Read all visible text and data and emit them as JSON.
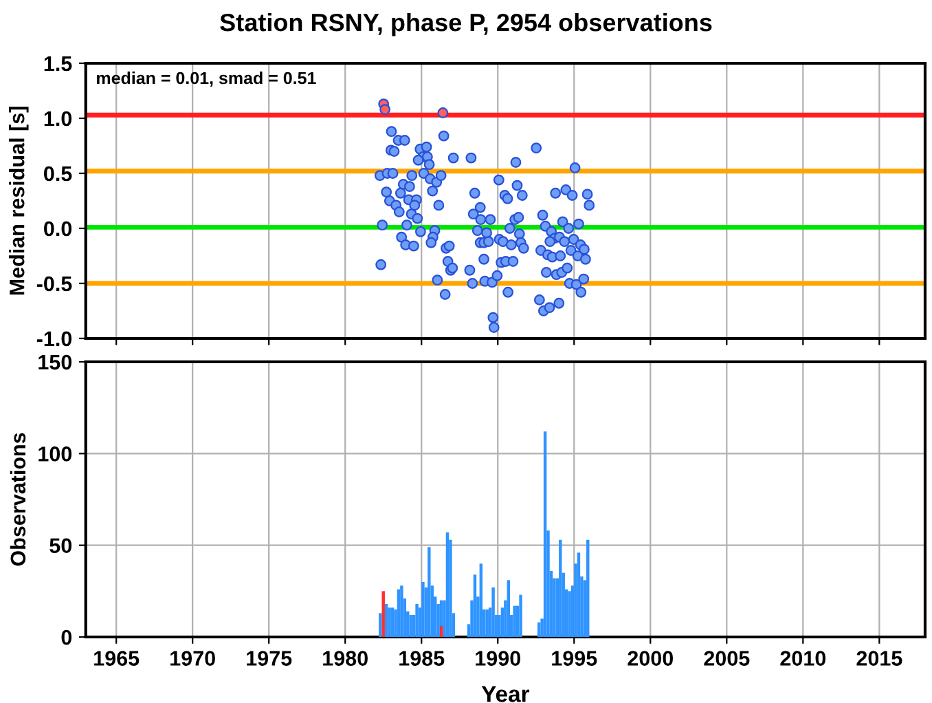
{
  "chart_data": [
    {
      "type": "scatter",
      "title": "Station RSNY, phase P, 2954 observations",
      "ylabel": "Median residual [s]",
      "annotations": [
        "median = 0.01, smad = 0.51"
      ],
      "xlim": [
        1963,
        2018
      ],
      "xticks": [
        1965,
        1970,
        1975,
        1980,
        1985,
        1990,
        1995,
        2000,
        2005,
        2010,
        2015
      ],
      "ylim": [
        -1.0,
        1.5
      ],
      "yticks": [
        {
          "value": -1.0,
          "label": "-1.0"
        },
        {
          "value": -0.5,
          "label": "-0.5"
        },
        {
          "value": 0.0,
          "label": "0.0"
        },
        {
          "value": 0.5,
          "label": "0.5"
        },
        {
          "value": 1.0,
          "label": "1.0"
        },
        {
          "value": 1.5,
          "label": "1.5"
        }
      ],
      "grid": "x",
      "tick_labels": "y",
      "marker": "circle",
      "ref_lines": [
        {
          "axis": "y",
          "value": 1.03,
          "color": "#ff2020"
        },
        {
          "axis": "y",
          "value": 0.52,
          "color": "#ffa500"
        },
        {
          "axis": "y",
          "value": 0.01,
          "color": "#00e600"
        },
        {
          "axis": "y",
          "value": -0.5,
          "color": "#ffa500"
        }
      ],
      "series": [
        {
          "color": "#6e9ef5",
          "x": [
            1983.03,
            1983.48,
            1983.9,
            1983.0,
            1983.21,
            1984.91,
            1985.33,
            1986.46,
            1985.09,
            1985.39,
            1984.79,
            1985.51,
            1987.09,
            1988.25,
            1992.52,
            1991.18,
            1995.06,
            1982.28,
            1982.76,
            1983.12,
            1984.37,
            1985.15,
            1985.57,
            1985.99,
            1986.28,
            1990.07,
            1982.7,
            1983.81,
            1984.22,
            1983.63,
            1982.91,
            1983.33,
            1984.16,
            1984.67,
            1984.55,
            1983.54,
            1985.72,
            1986.13,
            1988.49,
            1990.46,
            1990.64,
            1991.27,
            1991.6,
            1993.78,
            1994.46,
            1994.88,
            1995.87,
            1995.99,
            1982.43,
            1984.04,
            1984.34,
            1984.73,
            1984.94,
            1985.87,
            1985.75,
            1983.69,
            1983.96,
            1984.49,
            1985.63,
            1986.61,
            1986.82,
            1988.85,
            1988.4,
            1988.88,
            1989.51,
            1988.67,
            1989.27,
            1988.85,
            1989.09,
            1989.39,
            1990.79,
            1991.12,
            1991.36,
            1991.42,
            1990.1,
            1990.34,
            1990.88,
            1991.51,
            1991.69,
            1992.94,
            1993.12,
            1993.51,
            1993.72,
            1994.25,
            1994.64,
            1995.3,
            1993.42,
            1994.04,
            1994.37,
            1994.97,
            1995.42,
            1995.66,
            1992.82,
            1993.27,
            1993.57,
            1994.1,
            1994.79,
            1995.24,
            1995.75,
            1982.34,
            1986.73,
            1986.91,
            1987.03,
            1989.09,
            1990.22,
            1990.52,
            1991.0,
            1988.16,
            1986.04,
            1988.34,
            1989.15,
            1989.63,
            1989.96,
            1986.55,
            1990.67,
            1993.18,
            1993.84,
            1994.19,
            1994.55,
            1994.7,
            1995.15,
            1995.63,
            1995.45,
            1992.73,
            1993.0,
            1993.39,
            1994.01,
            1989.69,
            1989.75
          ],
          "values": [
            0.88,
            0.8,
            0.8,
            0.71,
            0.7,
            0.72,
            0.74,
            0.84,
            0.65,
            0.65,
            0.62,
            0.58,
            0.64,
            0.64,
            0.73,
            0.6,
            0.55,
            0.48,
            0.5,
            0.5,
            0.48,
            0.5,
            0.45,
            0.42,
            0.48,
            0.44,
            0.33,
            0.4,
            0.38,
            0.32,
            0.25,
            0.21,
            0.26,
            0.26,
            0.21,
            0.15,
            0.34,
            0.21,
            0.32,
            0.3,
            0.27,
            0.39,
            0.3,
            0.32,
            0.35,
            0.3,
            0.31,
            0.21,
            0.03,
            0.03,
            0.13,
            0.09,
            -0.03,
            -0.02,
            -0.08,
            -0.08,
            -0.15,
            -0.16,
            -0.13,
            -0.18,
            -0.16,
            0.19,
            0.13,
            0.08,
            0.08,
            -0.02,
            -0.04,
            -0.13,
            -0.13,
            -0.12,
            0.0,
            0.08,
            0.1,
            -0.05,
            -0.1,
            -0.12,
            -0.15,
            -0.13,
            -0.18,
            0.12,
            0.02,
            -0.03,
            -0.09,
            0.06,
            0.0,
            0.04,
            -0.12,
            -0.08,
            -0.12,
            -0.1,
            -0.15,
            -0.19,
            -0.2,
            -0.24,
            -0.26,
            -0.25,
            -0.2,
            -0.25,
            -0.28,
            -0.33,
            -0.3,
            -0.38,
            -0.36,
            -0.28,
            -0.31,
            -0.3,
            -0.3,
            -0.38,
            -0.47,
            -0.5,
            -0.48,
            -0.49,
            -0.43,
            -0.6,
            -0.58,
            -0.4,
            -0.42,
            -0.4,
            -0.36,
            -0.5,
            -0.51,
            -0.46,
            -0.58,
            -0.65,
            -0.75,
            -0.72,
            -0.68,
            -0.81,
            -0.9
          ]
        },
        {
          "color": "#ff6060",
          "x": [
            1982.52,
            1982.61,
            1986.4
          ],
          "values": [
            1.13,
            1.08,
            1.05
          ]
        }
      ]
    },
    {
      "type": "histogram",
      "xlabel": "Year",
      "ylabel": "Observations",
      "xlim": [
        1963,
        2018
      ],
      "xticks": [
        1965,
        1970,
        1975,
        1980,
        1985,
        1990,
        1995,
        2000,
        2005,
        2010,
        2015
      ],
      "ylim": [
        0,
        150
      ],
      "yticks": [
        0,
        50,
        100,
        150
      ],
      "grid": true,
      "bins": [
        1982.2,
        1982.4,
        1982.6,
        1982.8,
        1983.0,
        1983.2,
        1983.4,
        1983.6,
        1983.8,
        1984.0,
        1984.2,
        1984.4,
        1984.6,
        1984.8,
        1985.0,
        1985.2,
        1985.4,
        1985.6,
        1985.8,
        1986.0,
        1986.2,
        1986.4,
        1986.6,
        1986.8,
        1987.0,
        1987.2,
        1987.4,
        1987.6,
        1987.8,
        1988.0,
        1988.2,
        1988.4,
        1988.6,
        1988.8,
        1989.0,
        1989.2,
        1989.4,
        1989.6,
        1989.8,
        1990.0,
        1990.2,
        1990.4,
        1990.6,
        1990.8,
        1991.0,
        1991.2,
        1991.4,
        1991.6,
        1991.8,
        1992.0,
        1992.2,
        1992.4,
        1992.6,
        1992.8,
        1993.0,
        1993.2,
        1993.4,
        1993.6,
        1993.8,
        1994.0,
        1994.2,
        1994.4,
        1994.6,
        1994.8,
        1995.0,
        1995.2,
        1995.4,
        1995.6,
        1995.8,
        1996.0
      ],
      "series": [
        {
          "color": "#2f94ff",
          "values": [
            13,
            null,
            18,
            16,
            16,
            15,
            26,
            28,
            21,
            14,
            12,
            12,
            18,
            16,
            30,
            27,
            49,
            28,
            22,
            18,
            20,
            20,
            57,
            53,
            13,
            0,
            0,
            0,
            0,
            7,
            20,
            34,
            22,
            40,
            15,
            15,
            16,
            27,
            12,
            12,
            16,
            20,
            31,
            12,
            17,
            17,
            23,
            0,
            0,
            0,
            0,
            0,
            8,
            10,
            112,
            58,
            36,
            32,
            32,
            53,
            35,
            26,
            25,
            28,
            40,
            46,
            33,
            31,
            53
          ]
        },
        {
          "color": "#ff3030",
          "values": [
            0,
            25,
            0,
            0,
            0,
            0,
            0,
            0,
            0,
            0,
            0,
            0,
            0,
            0,
            0,
            0,
            0,
            0,
            0,
            0,
            6,
            0,
            0,
            0,
            0,
            0,
            0,
            0,
            0,
            0,
            0,
            0,
            0,
            0,
            0,
            0,
            0,
            0,
            0,
            0,
            0,
            0,
            0,
            0,
            0,
            0,
            0,
            0,
            0,
            0,
            0,
            0,
            0,
            0,
            0,
            0,
            0,
            0,
            0,
            0,
            0,
            0,
            0,
            0,
            0,
            0,
            0,
            0,
            0
          ]
        }
      ]
    }
  ]
}
